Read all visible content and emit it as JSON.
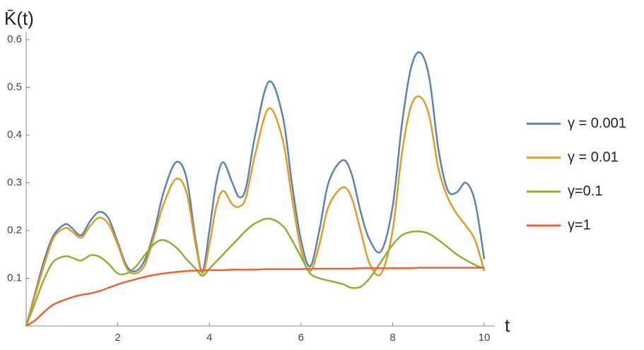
{
  "chart_data": {
    "type": "line",
    "y_label": "K̄(t)",
    "x_label": "t",
    "xlim": [
      0,
      10
    ],
    "ylim": [
      0,
      0.6
    ],
    "xticks": [
      2,
      4,
      6,
      8,
      10
    ],
    "yticks": [
      0.1,
      0.2,
      0.3,
      0.4,
      0.5,
      0.6
    ],
    "x": [
      0,
      0.2,
      0.4,
      0.6,
      0.85,
      1.0,
      1.2,
      1.4,
      1.6,
      1.8,
      2.0,
      2.2,
      2.4,
      2.6,
      2.8,
      3.0,
      3.27,
      3.5,
      3.7,
      3.85,
      4.0,
      4.15,
      4.3,
      4.5,
      4.65,
      4.8,
      5.0,
      5.3,
      5.6,
      5.8,
      6.0,
      6.2,
      6.4,
      6.6,
      6.9,
      7.1,
      7.3,
      7.5,
      7.75,
      8.0,
      8.2,
      8.4,
      8.6,
      8.8,
      9.0,
      9.2,
      9.4,
      9.6,
      9.8,
      10
    ],
    "series": [
      {
        "name": "γ = 0.001",
        "color": "#5e81b5",
        "values": [
          0,
          0.07,
          0.14,
          0.19,
          0.213,
          0.205,
          0.19,
          0.22,
          0.239,
          0.225,
          0.175,
          0.125,
          0.115,
          0.14,
          0.2,
          0.28,
          0.343,
          0.31,
          0.18,
          0.115,
          0.2,
          0.3,
          0.343,
          0.3,
          0.27,
          0.29,
          0.4,
          0.512,
          0.44,
          0.3,
          0.18,
          0.125,
          0.2,
          0.3,
          0.347,
          0.32,
          0.24,
          0.18,
          0.157,
          0.25,
          0.42,
          0.54,
          0.573,
          0.52,
          0.37,
          0.285,
          0.28,
          0.3,
          0.26,
          0.14
        ]
      },
      {
        "name": "γ = 0.01",
        "color": "#e19c24",
        "values": [
          0,
          0.065,
          0.13,
          0.185,
          0.205,
          0.198,
          0.185,
          0.21,
          0.227,
          0.213,
          0.17,
          0.12,
          0.11,
          0.13,
          0.19,
          0.255,
          0.308,
          0.28,
          0.17,
          0.11,
          0.17,
          0.25,
          0.283,
          0.255,
          0.25,
          0.27,
          0.36,
          0.456,
          0.39,
          0.27,
          0.16,
          0.115,
          0.17,
          0.25,
          0.29,
          0.27,
          0.2,
          0.13,
          0.11,
          0.2,
          0.36,
          0.46,
          0.48,
          0.44,
          0.33,
          0.27,
          0.235,
          0.21,
          0.18,
          0.115
        ]
      },
      {
        "name": "γ=0.1",
        "color": "#8fb032",
        "values": [
          0,
          0.05,
          0.1,
          0.135,
          0.146,
          0.143,
          0.137,
          0.148,
          0.145,
          0.13,
          0.11,
          0.11,
          0.125,
          0.15,
          0.172,
          0.18,
          0.165,
          0.14,
          0.12,
          0.105,
          0.12,
          0.135,
          0.15,
          0.17,
          0.185,
          0.2,
          0.215,
          0.225,
          0.21,
          0.18,
          0.145,
          0.11,
          0.1,
          0.095,
          0.088,
          0.08,
          0.082,
          0.1,
          0.135,
          0.17,
          0.19,
          0.197,
          0.198,
          0.193,
          0.18,
          0.165,
          0.15,
          0.138,
          0.128,
          0.12
        ]
      },
      {
        "name": "γ=1",
        "color": "#eb6235",
        "values": [
          0,
          0.012,
          0.03,
          0.045,
          0.055,
          0.06,
          0.065,
          0.068,
          0.073,
          0.08,
          0.087,
          0.093,
          0.098,
          0.103,
          0.107,
          0.11,
          0.113,
          0.115,
          0.116,
          0.116,
          0.117,
          0.117,
          0.117,
          0.118,
          0.118,
          0.118,
          0.118,
          0.119,
          0.119,
          0.119,
          0.119,
          0.12,
          0.12,
          0.12,
          0.12,
          0.12,
          0.121,
          0.121,
          0.121,
          0.121,
          0.121,
          0.121,
          0.122,
          0.122,
          0.122,
          0.122,
          0.122,
          0.122,
          0.122,
          0.122
        ]
      }
    ]
  }
}
